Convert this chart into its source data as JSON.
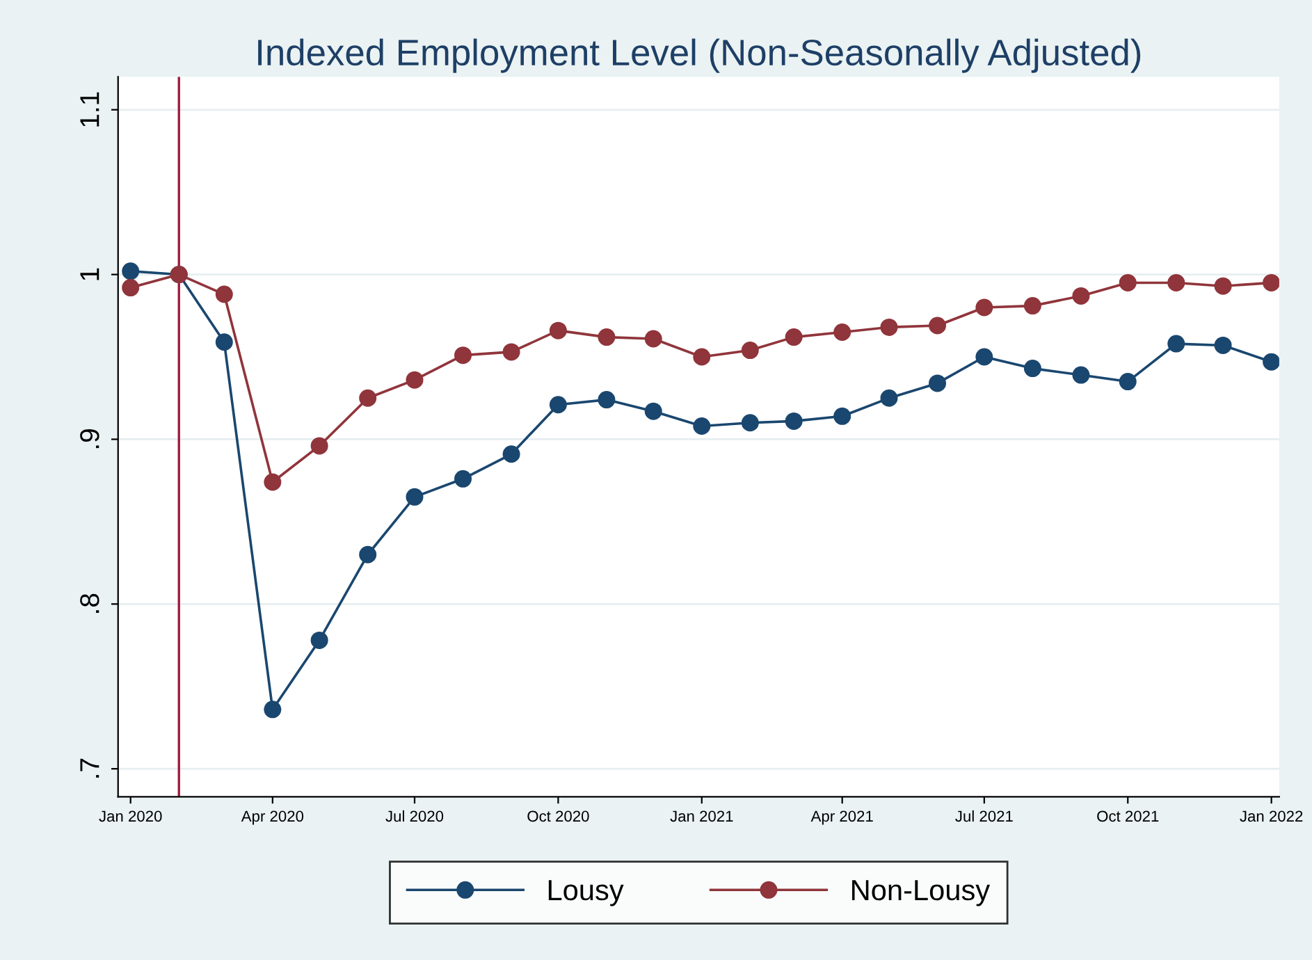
{
  "chart_data": {
    "type": "line",
    "title": "Indexed Employment Level (Non-Seasonally Adjusted)",
    "x": [
      "2020-01",
      "2020-02",
      "2020-03",
      "2020-04",
      "2020-05",
      "2020-06",
      "2020-07",
      "2020-08",
      "2020-09",
      "2020-10",
      "2020-11",
      "2020-12",
      "2021-01",
      "2021-02",
      "2021-03",
      "2021-04",
      "2021-05",
      "2021-06",
      "2021-07",
      "2021-08",
      "2021-09",
      "2021-10",
      "2021-11",
      "2021-12",
      "2022-01"
    ],
    "series": [
      {
        "name": "Lousy",
        "color": "#1a476f",
        "values": [
          1.002,
          1.0,
          0.959,
          0.736,
          0.778,
          0.83,
          0.865,
          0.876,
          0.891,
          0.921,
          0.924,
          0.917,
          0.908,
          0.91,
          0.911,
          0.914,
          0.925,
          0.934,
          0.95,
          0.943,
          0.939,
          0.935,
          0.958,
          0.957,
          0.947
        ]
      },
      {
        "name": "Non-Lousy",
        "color": "#90353b",
        "values": [
          0.992,
          1.0,
          0.988,
          0.874,
          0.896,
          0.925,
          0.936,
          0.951,
          0.953,
          0.966,
          0.962,
          0.961,
          0.95,
          0.954,
          0.962,
          0.965,
          0.968,
          0.969,
          0.98,
          0.981,
          0.987,
          0.995,
          0.995,
          0.993,
          0.995
        ]
      }
    ],
    "xlim": [
      "2019-12-24",
      "2022-01-06"
    ],
    "xticks": [
      {
        "value": "2020-01",
        "label": "Jan 2020"
      },
      {
        "value": "2020-04",
        "label": "Apr 2020"
      },
      {
        "value": "2020-07",
        "label": "Jul 2020"
      },
      {
        "value": "2020-10",
        "label": "Oct 2020"
      },
      {
        "value": "2021-01",
        "label": "Jan 2021"
      },
      {
        "value": "2021-04",
        "label": "Apr 2021"
      },
      {
        "value": "2021-07",
        "label": "Jul 2021"
      },
      {
        "value": "2021-10",
        "label": "Oct 2021"
      },
      {
        "value": "2022-01",
        "label": "Jan 2022"
      }
    ],
    "ylim": [
      0.683,
      1.12
    ],
    "yticks": [
      {
        "value": 0.7,
        "label": ".7"
      },
      {
        "value": 0.8,
        "label": ".8"
      },
      {
        "value": 0.9,
        "label": ".9"
      },
      1,
      1.1
    ],
    "ref_lines": [
      {
        "axis": "x",
        "value": "2020-02",
        "color": "#a0183c"
      }
    ],
    "grid": "y",
    "legend": "bottom",
    "marker": "circle",
    "line_style": "solid"
  }
}
